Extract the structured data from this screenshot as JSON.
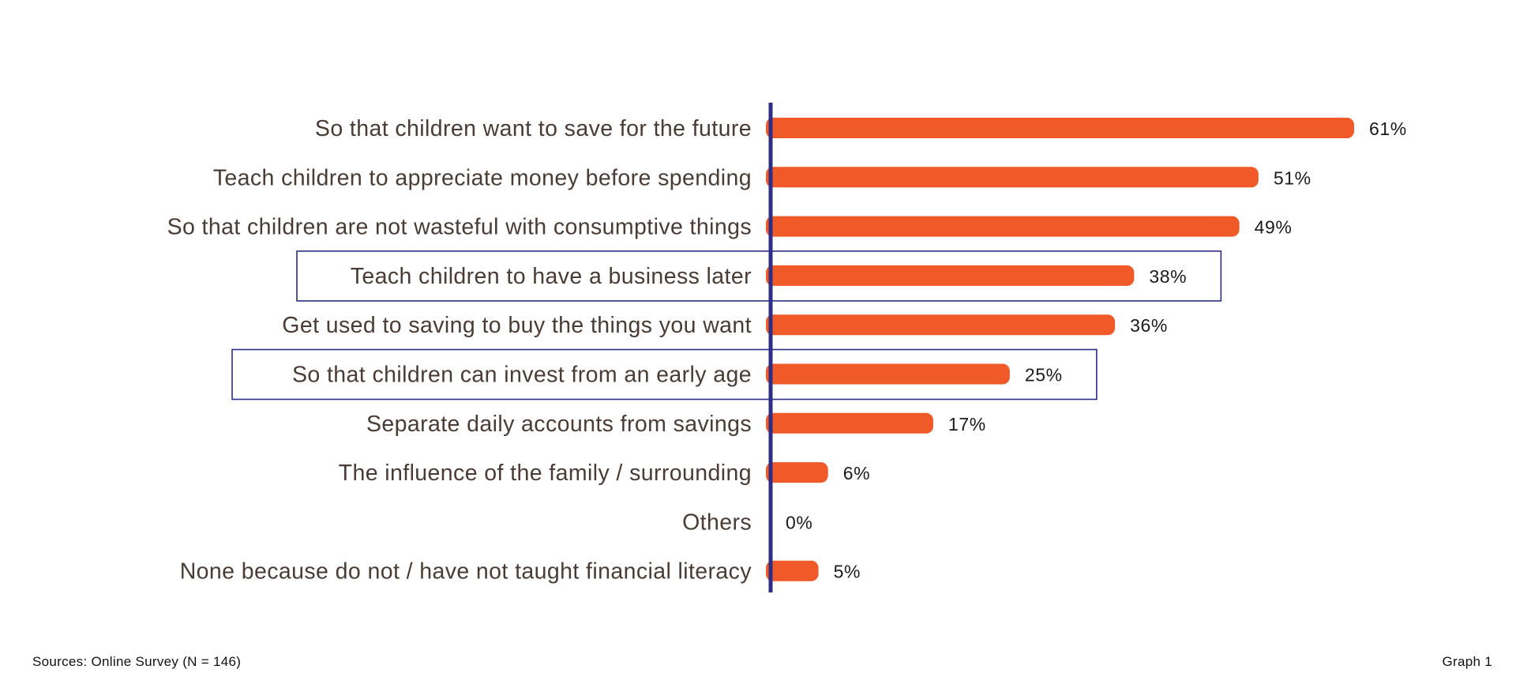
{
  "chart_data": {
    "type": "bar",
    "orientation": "horizontal",
    "categories": [
      "So that children want to save for the future",
      "Teach children to appreciate money before spending",
      "So that children are not wasteful with consumptive things",
      "Teach children to have a business later",
      "Get used to saving to buy the things you want",
      "So that children can invest from an early age",
      "Separate daily accounts from savings",
      "The influence of the family / surrounding",
      "Others",
      "None because do not / have not taught financial literacy"
    ],
    "values": [
      61,
      51,
      49,
      38,
      36,
      25,
      17,
      6,
      0,
      5
    ],
    "value_labels": [
      "61%",
      "51%",
      "49%",
      "38%",
      "36%",
      "25%",
      "17%",
      "6%",
      "0%",
      "5%"
    ],
    "highlighted_categories": [
      "Teach children to have a business later",
      "So that children can invest from an early age"
    ],
    "unit": "%",
    "xlim": [
      0,
      61
    ],
    "grid": false,
    "legend": "none",
    "colors": {
      "bar": "#f05a28",
      "axis": "#2b2d86",
      "highlight_box": "#2b2d86",
      "category_text": "#4a3c35",
      "value_text": "#1a1a1a"
    }
  },
  "footer": {
    "source": "Sources: Online Survey (N = 146)",
    "graph_label": "Graph 1"
  }
}
